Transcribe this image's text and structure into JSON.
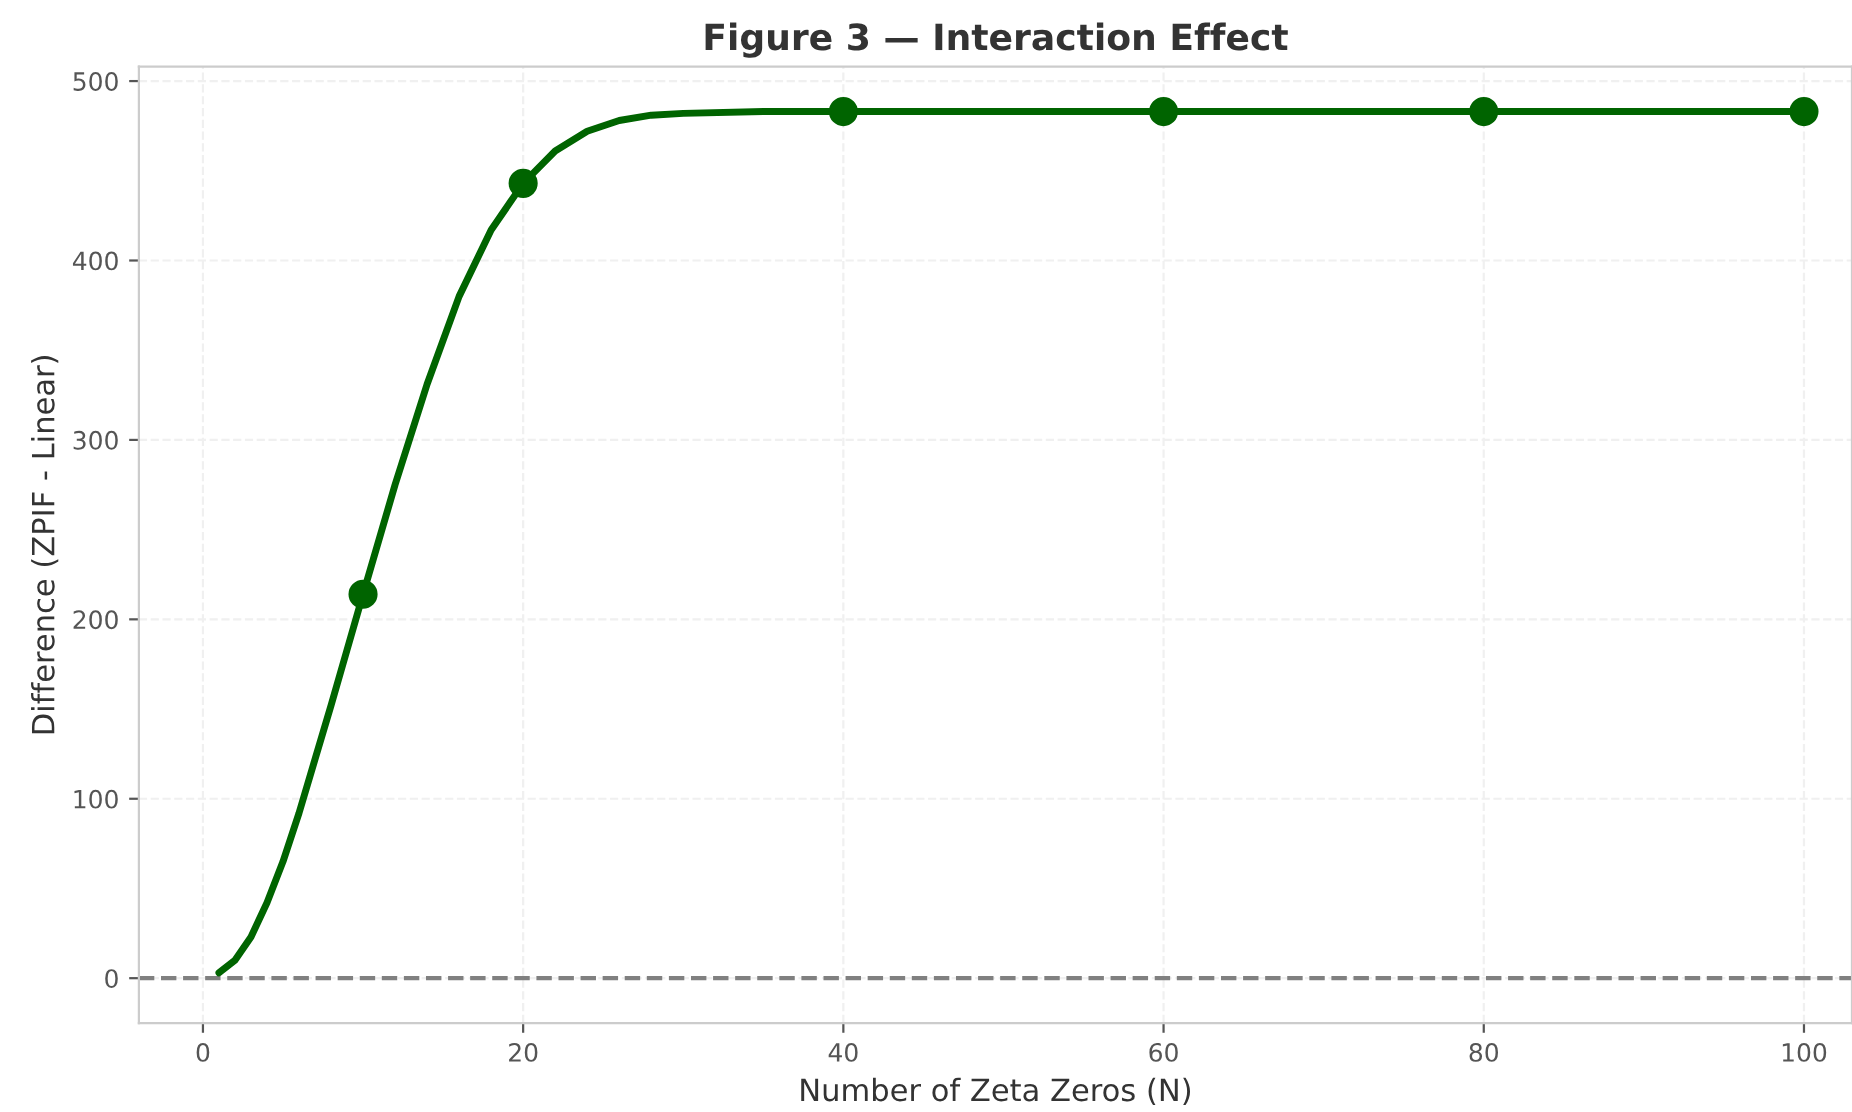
{
  "chart_data": {
    "type": "line",
    "title": "Figure 3 — Interaction Effect",
    "xlabel": "Number of Zeta Zeros (N)",
    "ylabel": "Difference (ZPIF - Linear)",
    "series": [
      {
        "color": "#006400",
        "x": [
          1,
          2,
          3,
          4,
          5,
          6,
          7,
          8,
          9,
          10,
          12,
          14,
          16,
          18,
          20,
          22,
          24,
          26,
          28,
          30,
          35,
          40,
          50,
          60,
          70,
          80,
          90,
          100
        ],
        "values": [
          3,
          10,
          23,
          42,
          65,
          92,
          122,
          152,
          183,
          214,
          275,
          331,
          380,
          417,
          443,
          461,
          472,
          478,
          481,
          482,
          483,
          483,
          483,
          483,
          483,
          483,
          483,
          483
        ]
      },
      {
        "type": "scatter",
        "color": "#006400",
        "marker": "circle",
        "x": [
          10,
          20,
          40,
          60,
          80,
          100
        ],
        "values": [
          214,
          443,
          483,
          483,
          483,
          483
        ]
      }
    ],
    "xlim": [
      -4,
      103
    ],
    "xticks": [
      0,
      20,
      40,
      60,
      80,
      100
    ],
    "ylim": [
      -25,
      508
    ],
    "yticks": [
      0,
      100,
      200,
      300,
      400,
      500
    ],
    "ref_lines": [
      {
        "axis": "y",
        "value": 0,
        "color": "#808080",
        "line_style": "dashed"
      }
    ],
    "grid": true
  }
}
